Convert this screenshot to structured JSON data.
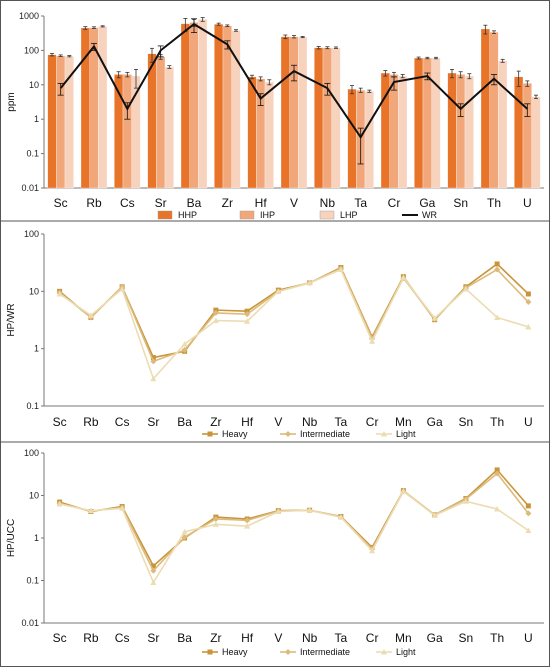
{
  "chart_data": [
    {
      "type": "bar",
      "ylabel": "ppm",
      "yscale": "log",
      "ylim": [
        0.01,
        1000
      ],
      "yticks": [
        "0.01",
        "0.1",
        "1",
        "10",
        "100",
        "1000"
      ],
      "grid": false,
      "legend": "bottom",
      "categories": [
        "Sc",
        "Rb",
        "Cs",
        "Sr",
        "Ba",
        "Zr",
        "Hf",
        "V",
        "Nb",
        "Ta",
        "Cr",
        "Ga",
        "Sn",
        "Th",
        "U"
      ],
      "series": [
        {
          "name": "HHP",
          "kind": "bar",
          "color": "#e8742a",
          "values": [
            75,
            450,
            20,
            80,
            600,
            580,
            17,
            250,
            120,
            7.5,
            22,
            60,
            22,
            420,
            17
          ],
          "error": [
            6,
            40,
            4,
            35,
            250,
            40,
            2,
            30,
            10,
            2,
            4,
            4,
            6,
            120,
            8
          ]
        },
        {
          "name": "IHP",
          "kind": "bar",
          "color": "#f2a77a",
          "values": [
            70,
            460,
            20,
            65,
            650,
            520,
            15,
            250,
            120,
            7,
            20,
            60,
            20,
            340,
            11
          ],
          "error": [
            4,
            25,
            3,
            10,
            150,
            30,
            2,
            20,
            8,
            1,
            3,
            3,
            4,
            30,
            2
          ]
        },
        {
          "name": "LHP",
          "kind": "bar",
          "color": "#f7d2bd",
          "values": [
            68,
            500,
            18,
            33,
            800,
            380,
            12,
            245,
            120,
            6.5,
            18,
            60,
            18,
            50,
            4.5
          ],
          "error": [
            3,
            20,
            10,
            3,
            100,
            20,
            2,
            10,
            6,
            0.5,
            2,
            3,
            3,
            5,
            0.5
          ]
        },
        {
          "name": "WR",
          "kind": "line",
          "color": "#111111",
          "values": [
            8,
            130,
            2,
            100,
            580,
            150,
            4,
            25,
            8,
            0.3,
            12,
            18,
            2,
            15,
            2
          ],
          "error": [
            3,
            30,
            1,
            35,
            250,
            40,
            1.5,
            12,
            3,
            0.25,
            5,
            4,
            0.8,
            5,
            0.8
          ]
        }
      ]
    },
    {
      "type": "line",
      "ylabel": "HP/WR",
      "yscale": "log",
      "ylim": [
        0.1,
        100
      ],
      "yticks": [
        "0.1",
        "1",
        "10",
        "100"
      ],
      "grid": false,
      "legend": "bottom",
      "categories": [
        "Sc",
        "Rb",
        "Cs",
        "Sr",
        "Ba",
        "Zr",
        "Hf",
        "V",
        "Nb",
        "Ta",
        "Cr",
        "Mn",
        "Ga",
        "Sn",
        "Th",
        "U"
      ],
      "series": [
        {
          "name": "Heavy",
          "color": "#c9943a",
          "marker": "square",
          "values": [
            10,
            3.5,
            12,
            0.7,
            0.9,
            4.7,
            4.5,
            10.5,
            14,
            26,
            1.6,
            18,
            3.2,
            12,
            30,
            9
          ]
        },
        {
          "name": "Intermediate",
          "color": "#dcbb7a",
          "marker": "diamond",
          "values": [
            9.5,
            3.5,
            12,
            0.6,
            0.95,
            4.2,
            4,
            10,
            14,
            25,
            1.5,
            17,
            3.3,
            11.5,
            24,
            6.5
          ]
        },
        {
          "name": "Light",
          "color": "#ecdcb2",
          "marker": "triangle",
          "values": [
            9,
            3.8,
            11,
            0.3,
            1.2,
            3.1,
            3,
            10,
            14,
            24,
            1.35,
            17.5,
            3.4,
            11,
            3.5,
            2.4
          ]
        }
      ]
    },
    {
      "type": "line",
      "ylabel": "HP/UCC",
      "yscale": "log",
      "ylim": [
        0.01,
        100
      ],
      "yticks": [
        "0.01",
        "0.1",
        "1",
        "10",
        "100"
      ],
      "grid": false,
      "legend": "bottom",
      "categories": [
        "Sc",
        "Rb",
        "Cs",
        "Sr",
        "Ba",
        "Zr",
        "Hf",
        "V",
        "Nb",
        "Ta",
        "Cr",
        "Mn",
        "Ga",
        "Sn",
        "Th",
        "U"
      ],
      "series": [
        {
          "name": "Heavy",
          "color": "#c9943a",
          "marker": "square",
          "values": [
            7,
            4.2,
            5.5,
            0.22,
            1,
            3.1,
            2.8,
            4.4,
            4.5,
            3.2,
            0.6,
            13,
            3.5,
            8.5,
            40,
            5.7
          ]
        },
        {
          "name": "Intermediate",
          "color": "#dcbb7a",
          "marker": "diamond",
          "values": [
            6.5,
            4.3,
            5.2,
            0.17,
            1.05,
            2.8,
            2.6,
            4.3,
            4.5,
            3.1,
            0.55,
            12.5,
            3.5,
            8.2,
            33,
            3.8
          ]
        },
        {
          "name": "Light",
          "color": "#ecdcb2",
          "marker": "triangle",
          "values": [
            6.3,
            4.4,
            5,
            0.09,
            1.4,
            2.1,
            1.9,
            4.2,
            4.5,
            3.1,
            0.5,
            12.8,
            3.4,
            7.3,
            4.8,
            1.5
          ]
        }
      ]
    }
  ]
}
